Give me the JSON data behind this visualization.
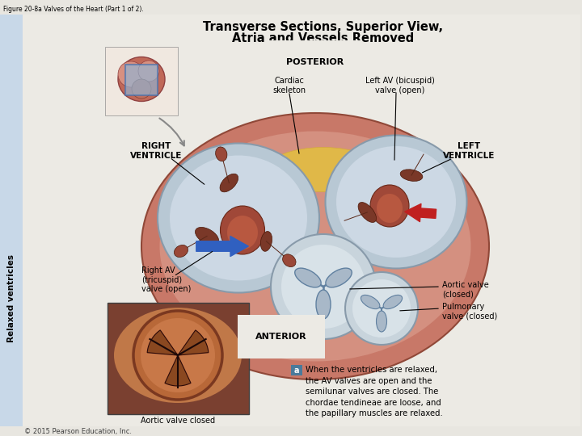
{
  "fig_label": "Figure 20-8a Valves of the Heart (Part 1 of 2).",
  "title_line1": "Transverse Sections, Superior View,",
  "title_line2": "Atria and Vessels Removed",
  "bg_outer": "#e8e6e0",
  "bg_inner": "#eceae4",
  "left_bar_color": "#c8d8e8",
  "posterior_label": "POSTERIOR",
  "anterior_label": "ANTERIOR",
  "right_ventricle_label": "RIGHT\nVENTRICLE",
  "left_ventricle_label": "LEFT\nVENTRICLE",
  "relaxed_label": "Relaxed ventricles",
  "cardiac_skeleton_label": "Cardiac\nskeleton",
  "left_av_label": "Left AV (bicuspid)\nvalve (open)",
  "right_av_label": "Right AV\n(tricuspid)\nvalve (open)",
  "aortic_valve_label": "Aortic valve\n(closed)",
  "pulmonary_valve_label": "Pulmonary\nvalve (closed)",
  "aortic_valve_closed_label": "Aortic valve closed",
  "caption_a": "a",
  "caption_text": "When the ventricles are relaxed,\nthe AV valves are open and the\nsemilunar valves are closed. The\nchordae tendineae are loose, and\nthe papillary muscles are relaxed.",
  "copyright": "© 2015 Pearson Education, Inc.",
  "heart_outer_color": "#c87868",
  "heart_mid_color": "#d49080",
  "heart_rim_color": "#c06858",
  "fat_color": "#e0b848",
  "fat_color2": "#d4a840",
  "rv_color": "#b8c8d4",
  "lv_color": "#b8c8d4",
  "valve_fill": "#c8d4dc",
  "valve_inner": "#d8e2e8",
  "valve_edge": "#889aaa",
  "leaflet_color": "#7a3828",
  "leaflet_edge": "#4a1808",
  "chordae_color": "#5a2818",
  "blue_arrow_color": "#3060c0",
  "red_arrow_color": "#c02020",
  "caption_box_color": "#4a7a9b",
  "photo_bg": "#8a4828",
  "photo_inner": "#c07848"
}
